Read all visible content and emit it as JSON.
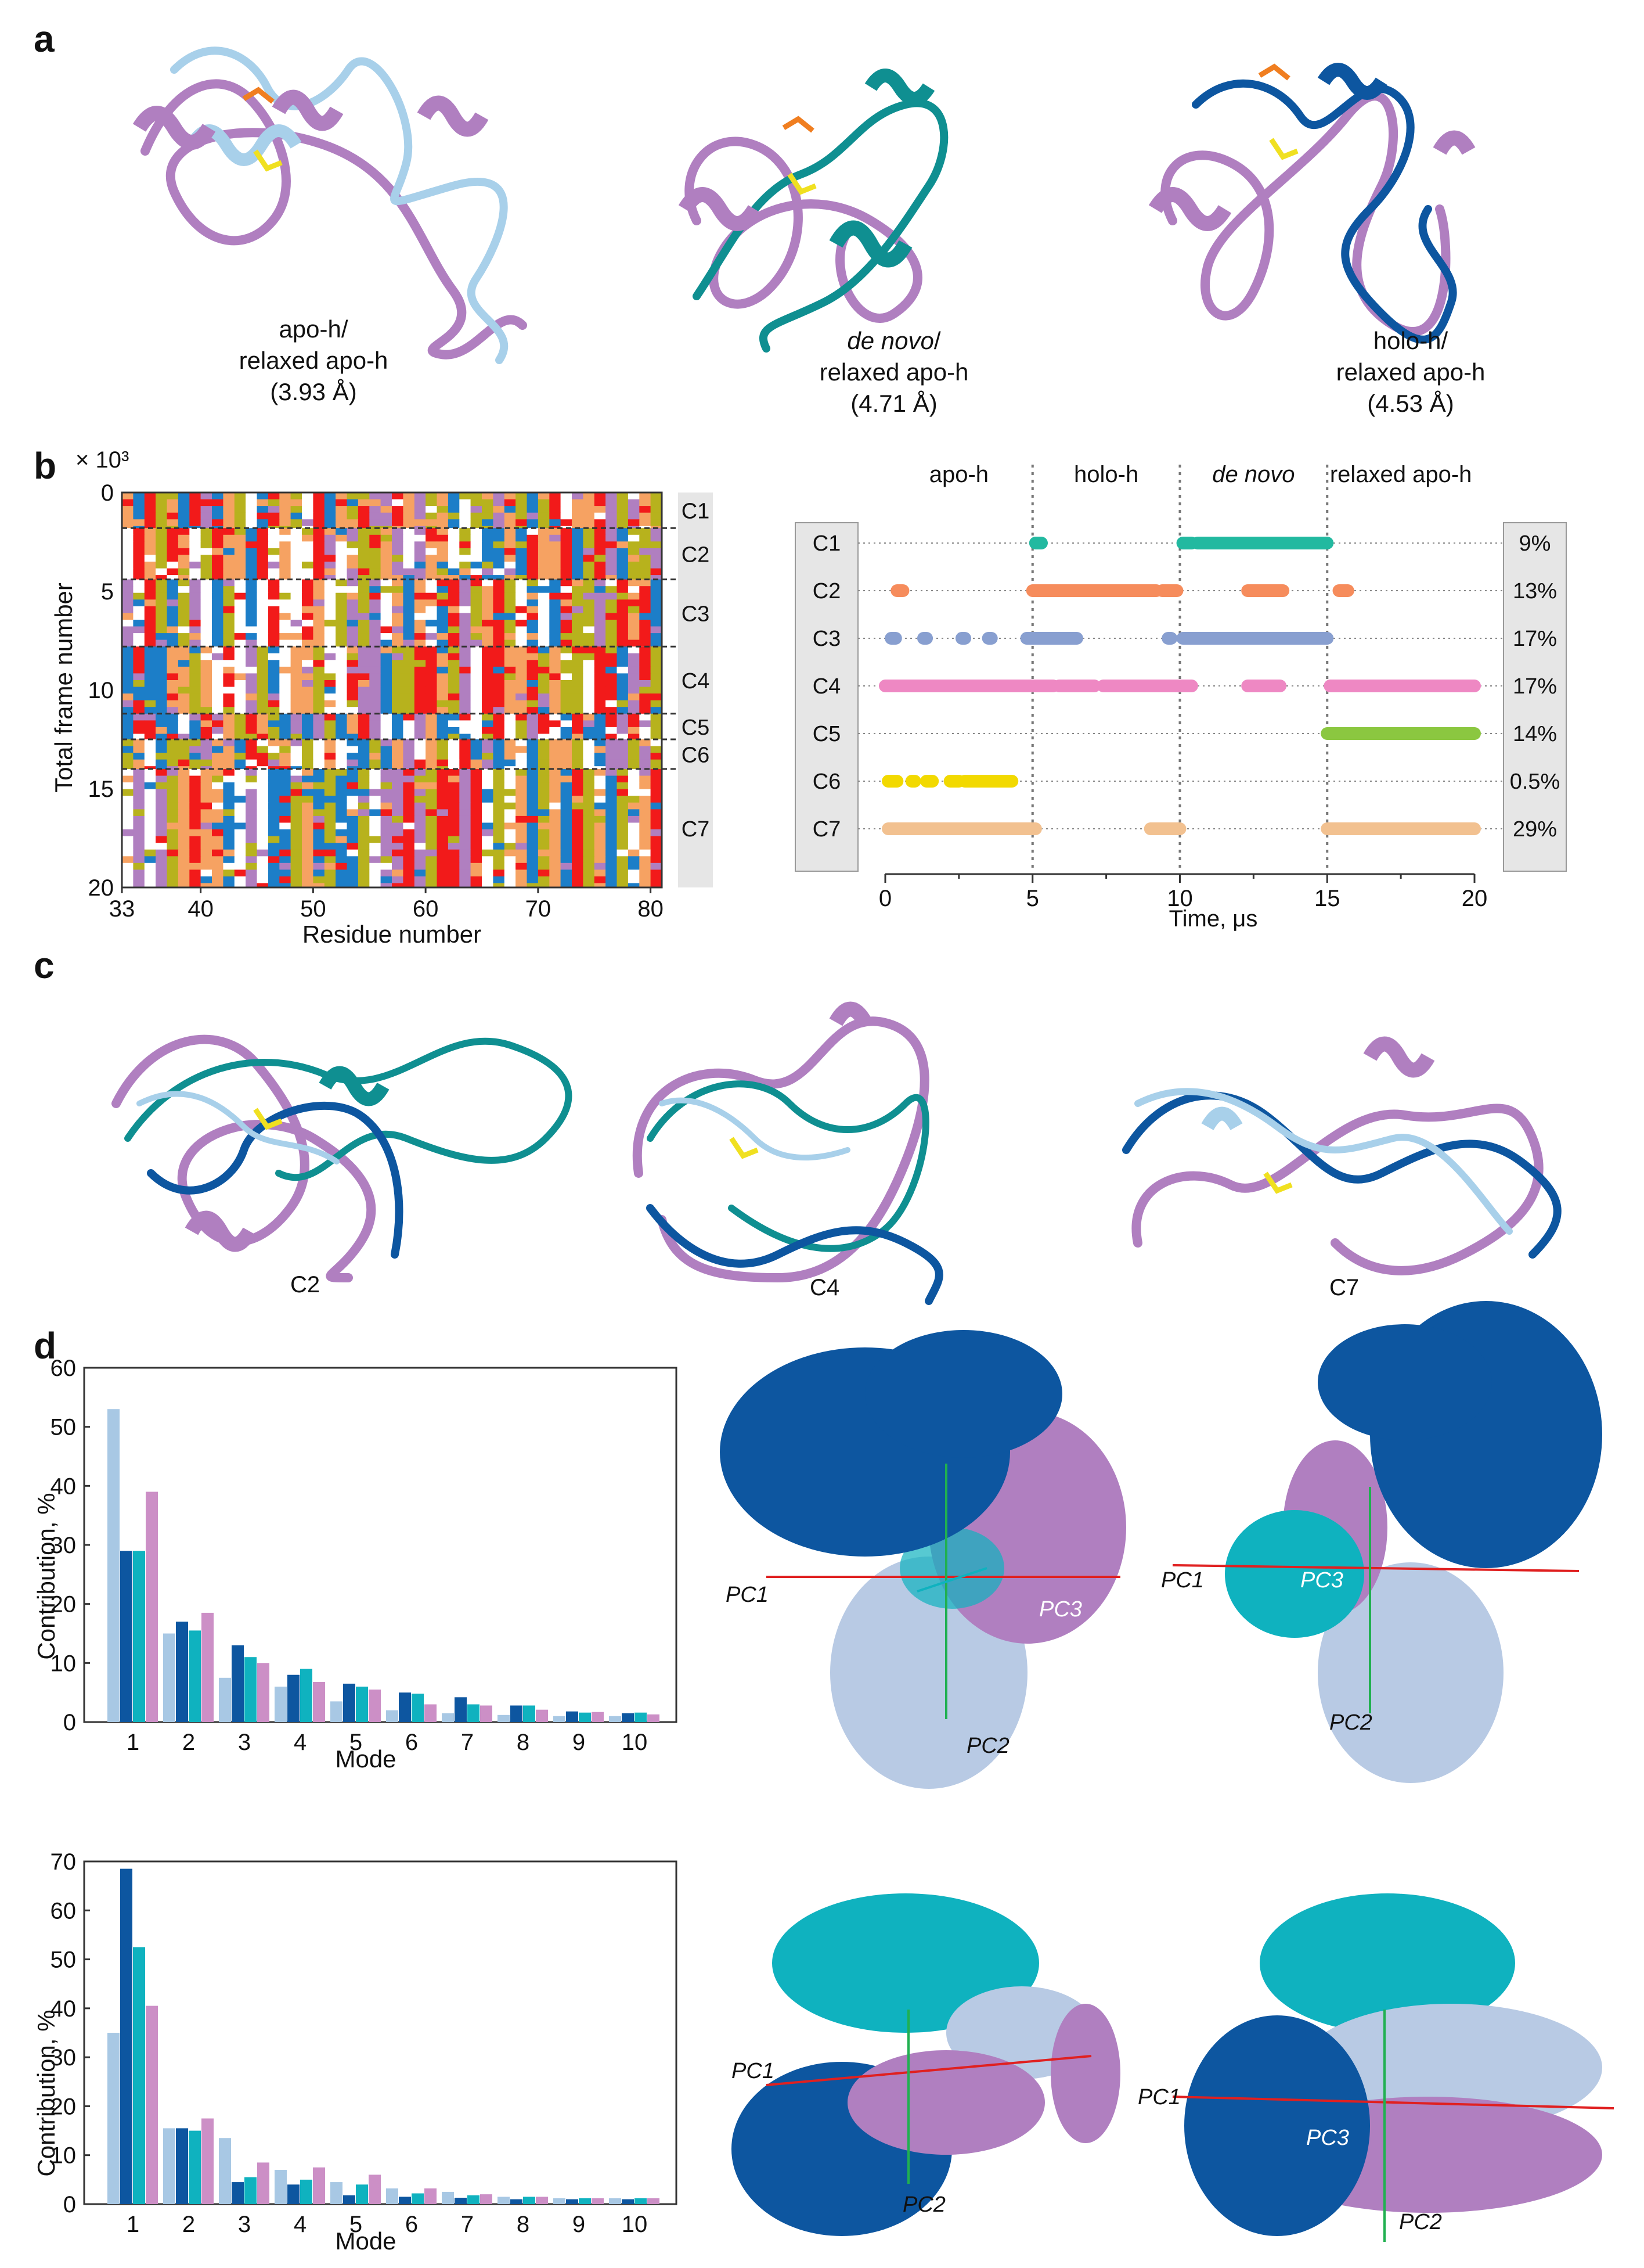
{
  "colors": {
    "light_blue": "#a8c8e4",
    "pale_blue": "#b8cae4",
    "dark_blue": "#0d56a0",
    "teal": "#0fb2bf",
    "dark_teal": "#0f8f91",
    "pink_violet": "#cc8fc6",
    "violet": "#b07fc0",
    "yellow": "#f0e020",
    "orange": "#f07e20",
    "red": "#f21a1a",
    "olive": "#b7b21d",
    "light_orange": "#f6a262",
    "medium_blue": "#1c7ec8",
    "clu_teal": "#22b9a0",
    "clu_orange": "#f68c5c",
    "clu_slate": "#889fd0",
    "clu_pink": "#ee88c3",
    "clu_green": "#8bc740",
    "clu_yellow": "#f2d900",
    "clu_peach": "#f2c190",
    "pc_red": "#e02020",
    "pc_green": "#20b050"
  },
  "panels": {
    "a": "a",
    "b": "b",
    "c": "c",
    "d": "d"
  },
  "panel_a": {
    "captions": [
      {
        "line1": "apo-h/",
        "line2": "relaxed apo-h",
        "line3": "(3.93 Å)"
      },
      {
        "line1": "de novo",
        "line1_suffix": "/",
        "line2": "relaxed apo-h",
        "line3": "(4.71 Å)"
      },
      {
        "line1": "holo-h/",
        "line2": "relaxed apo-h",
        "line3": "(4.53 Å)"
      }
    ]
  },
  "panel_c": {
    "captions": [
      "C2",
      "C4",
      "C7"
    ]
  },
  "panel_d": {
    "pc_labels": [
      "PC1",
      "PC2",
      "PC3"
    ]
  },
  "chart_data": [
    {
      "id": "b-left",
      "type": "heatmap",
      "title": "",
      "xlabel": "Residue number",
      "ylabel": "Total frame number",
      "yunit": "× 10³",
      "xticks": [
        33,
        40,
        50,
        60,
        70,
        80
      ],
      "yticks": [
        0,
        5,
        10,
        15,
        20
      ],
      "xlim": [
        33,
        81
      ],
      "ylim": [
        0,
        20
      ],
      "cluster_boundaries": [
        1.8,
        4.4,
        7.8,
        11.2,
        12.5,
        14.0
      ],
      "clusters": [
        "C1",
        "C2",
        "C3",
        "C4",
        "C5",
        "C6",
        "C7"
      ]
    },
    {
      "id": "b-right",
      "type": "scatter",
      "xlabel": "Time, μs",
      "xticks": [
        0,
        5,
        10,
        15,
        20
      ],
      "xlim": [
        0,
        20
      ],
      "segments": [
        "apo-h",
        "holo-h",
        "de novo",
        "relaxed apo-h"
      ],
      "segment_boundaries": [
        5,
        10,
        15
      ],
      "rows": [
        {
          "name": "C1",
          "percent": "9%",
          "color_key": "clu_teal",
          "intervals": [
            [
              5.1,
              5.3
            ],
            [
              10.1,
              10.4
            ],
            [
              10.6,
              15.0
            ]
          ]
        },
        {
          "name": "C2",
          "percent": "13%",
          "color_key": "clu_orange",
          "intervals": [
            [
              0.4,
              0.6
            ],
            [
              5.0,
              9.2
            ],
            [
              9.4,
              9.9
            ],
            [
              12.3,
              13.5
            ],
            [
              15.4,
              15.7
            ]
          ]
        },
        {
          "name": "C3",
          "percent": "17%",
          "color_key": "clu_slate",
          "intervals": [
            [
              0.2,
              0.35
            ],
            [
              1.3,
              1.4
            ],
            [
              2.6,
              2.7
            ],
            [
              3.5,
              3.6
            ],
            [
              4.8,
              6.5
            ],
            [
              9.6,
              9.7
            ],
            [
              10.1,
              15.0
            ]
          ]
        },
        {
          "name": "C4",
          "percent": "17%",
          "color_key": "clu_pink",
          "intervals": [
            [
              0.0,
              5.7
            ],
            [
              5.9,
              7.1
            ],
            [
              7.4,
              10.4
            ],
            [
              12.3,
              13.4
            ],
            [
              15.1,
              20.0
            ]
          ]
        },
        {
          "name": "C5",
          "percent": "14%",
          "color_key": "clu_green",
          "intervals": [
            [
              15.0,
              20.0
            ]
          ]
        },
        {
          "name": "C6",
          "percent": "0.5%",
          "color_key": "clu_yellow",
          "intervals": [
            [
              0.1,
              0.4
            ],
            [
              0.9,
              1.0
            ],
            [
              1.4,
              1.6
            ],
            [
              2.2,
              2.5
            ],
            [
              2.7,
              4.3
            ]
          ]
        },
        {
          "name": "C7",
          "percent": "29%",
          "color_key": "clu_peach",
          "intervals": [
            [
              0.1,
              5.1
            ],
            [
              9.0,
              10.0
            ],
            [
              15.0,
              20.0
            ]
          ]
        }
      ]
    },
    {
      "id": "d-top",
      "type": "bar",
      "xlabel": "Mode",
      "ylabel": "Contribution, %",
      "ylim": [
        0,
        60
      ],
      "yticks": [
        0,
        10,
        20,
        30,
        40,
        50,
        60
      ],
      "categories": [
        "1",
        "2",
        "3",
        "4",
        "5",
        "6",
        "7",
        "8",
        "9",
        "10"
      ],
      "series": [
        {
          "name": "light",
          "color_key": "light_blue",
          "values": [
            53,
            15,
            7.5,
            6,
            3.5,
            2,
            1.5,
            1.2,
            1,
            1
          ]
        },
        {
          "name": "dark",
          "color_key": "dark_blue",
          "values": [
            29,
            17,
            13,
            8,
            6.5,
            5,
            4.2,
            2.8,
            1.8,
            1.5
          ]
        },
        {
          "name": "teal",
          "color_key": "teal",
          "values": [
            29,
            15.5,
            11,
            9,
            6,
            4.8,
            3,
            2.8,
            1.6,
            1.6
          ]
        },
        {
          "name": "pink",
          "color_key": "pink_violet",
          "values": [
            39,
            18.5,
            10,
            6.8,
            5.5,
            3,
            2.8,
            2.1,
            1.7,
            1.3
          ]
        }
      ]
    },
    {
      "id": "d-bottom",
      "type": "bar",
      "xlabel": "Mode",
      "ylabel": "Contribution, %",
      "ylim": [
        0,
        70
      ],
      "yticks": [
        0,
        10,
        20,
        30,
        40,
        50,
        60,
        70
      ],
      "categories": [
        "1",
        "2",
        "3",
        "4",
        "5",
        "6",
        "7",
        "8",
        "9",
        "10"
      ],
      "series": [
        {
          "name": "light",
          "color_key": "light_blue",
          "values": [
            35,
            15.5,
            13.5,
            7,
            4.5,
            3.2,
            2.5,
            1.5,
            1.2,
            1.2
          ]
        },
        {
          "name": "dark",
          "color_key": "dark_blue",
          "values": [
            68.5,
            15.5,
            4.5,
            4,
            1.8,
            1.5,
            1.3,
            1,
            1,
            1
          ]
        },
        {
          "name": "teal",
          "color_key": "teal",
          "values": [
            52.5,
            15,
            5.5,
            5,
            4,
            2.2,
            1.8,
            1.5,
            1.2,
            1.2
          ]
        },
        {
          "name": "pink",
          "color_key": "pink_violet",
          "values": [
            40.5,
            17.5,
            8.5,
            7.5,
            6,
            3.2,
            2,
            1.5,
            1.2,
            1.2
          ]
        }
      ]
    }
  ]
}
